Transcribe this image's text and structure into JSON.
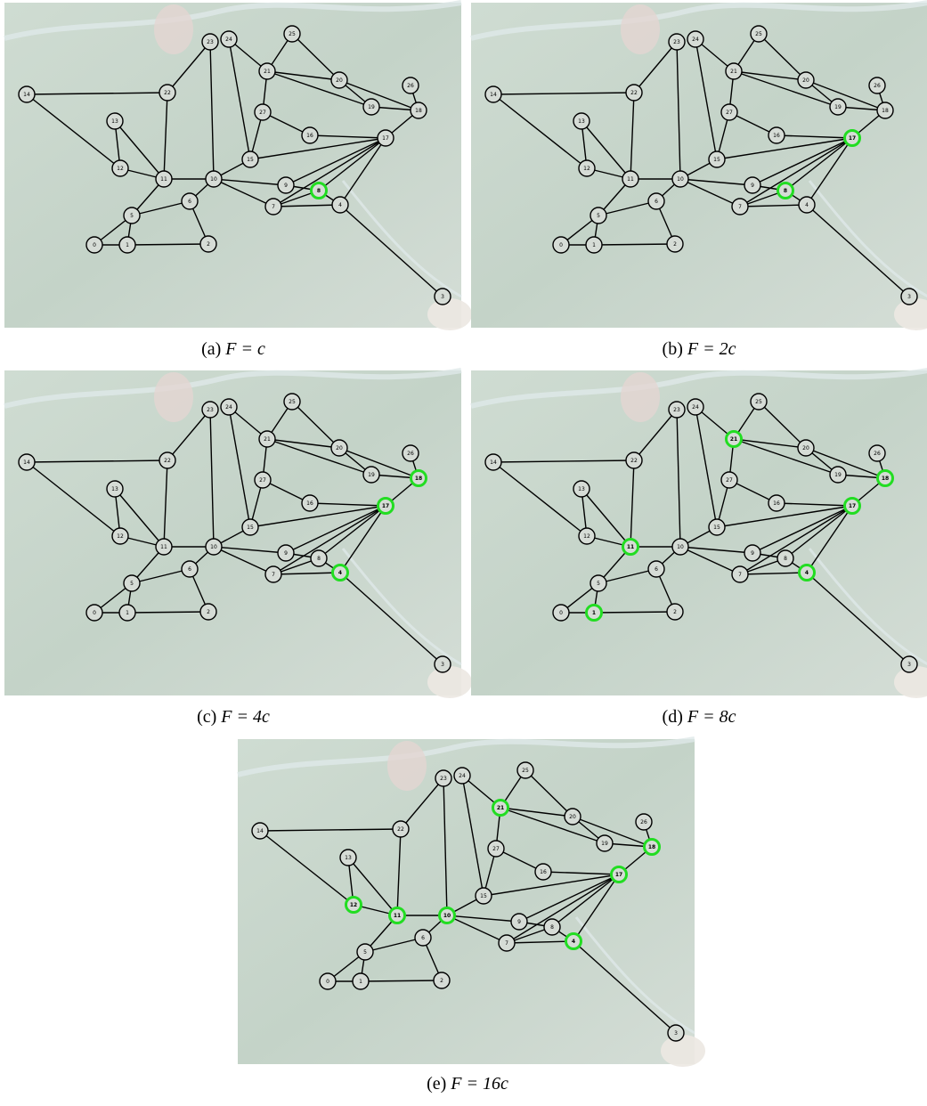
{
  "nodes": [
    "0",
    "1",
    "2",
    "3",
    "4",
    "5",
    "6",
    "7",
    "8",
    "9",
    "10",
    "11",
    "12",
    "13",
    "14",
    "15",
    "16",
    "17",
    "18",
    "19",
    "20",
    "21",
    "22",
    "23",
    "24",
    "25",
    "26",
    "27"
  ],
  "highlight_color": "#22dd22",
  "panels": [
    {
      "label": "(a)",
      "math": "F = c",
      "highlighted": [
        8
      ]
    },
    {
      "label": "(b)",
      "math": "F = 2c",
      "highlighted": [
        8,
        17
      ]
    },
    {
      "label": "(c)",
      "math": "F = 4c",
      "highlighted": [
        4,
        17,
        18
      ]
    },
    {
      "label": "(d)",
      "math": "F = 8c",
      "highlighted": [
        1,
        4,
        11,
        17,
        18,
        21
      ]
    },
    {
      "label": "(e)",
      "math": "F = 16c",
      "highlighted": [
        4,
        10,
        11,
        12,
        17,
        18,
        21
      ]
    }
  ]
}
